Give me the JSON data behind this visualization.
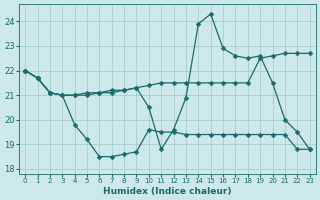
{
  "xlabel": "Humidex (Indice chaleur)",
  "bg_color": "#cce8e8",
  "line_color": "#1a6b6b",
  "grid_color": "#a8cccc",
  "xlim": [
    -0.5,
    23.5
  ],
  "ylim": [
    17.8,
    24.7
  ],
  "yticks": [
    18,
    19,
    20,
    21,
    22,
    23,
    24
  ],
  "xticks": [
    0,
    1,
    2,
    3,
    4,
    5,
    6,
    7,
    8,
    9,
    10,
    11,
    12,
    13,
    14,
    15,
    16,
    17,
    18,
    19,
    20,
    21,
    22,
    23
  ],
  "lines": [
    {
      "x": [
        0,
        1,
        2,
        3,
        4,
        5,
        6,
        7,
        8,
        9,
        10,
        11,
        12,
        13,
        14,
        15,
        16,
        17,
        18,
        19,
        20,
        21,
        22,
        23
      ],
      "y": [
        22.0,
        21.7,
        21.1,
        21.0,
        21.0,
        21.1,
        21.1,
        21.2,
        21.2,
        21.3,
        20.5,
        18.8,
        19.6,
        20.9,
        23.9,
        24.3,
        22.9,
        22.6,
        22.5,
        22.6,
        21.5,
        20.0,
        19.5,
        18.8
      ]
    },
    {
      "x": [
        0,
        1,
        2,
        3,
        4,
        5,
        6,
        7,
        8,
        9,
        10,
        11,
        12,
        13,
        14,
        15,
        16,
        17,
        18,
        19,
        20,
        21,
        22,
        23
      ],
      "y": [
        22.0,
        21.7,
        21.1,
        21.0,
        21.0,
        21.0,
        21.1,
        21.1,
        21.2,
        21.3,
        21.4,
        21.5,
        21.5,
        21.5,
        21.5,
        21.5,
        21.5,
        21.5,
        21.5,
        22.5,
        22.6,
        22.7,
        22.7,
        22.7
      ]
    },
    {
      "x": [
        0,
        1,
        2,
        3,
        4,
        5,
        6,
        7,
        8,
        9,
        10,
        11,
        12,
        13,
        14,
        15,
        16,
        17,
        18,
        19,
        20,
        21,
        22,
        23
      ],
      "y": [
        22.0,
        21.7,
        21.1,
        21.0,
        19.8,
        19.2,
        18.5,
        18.5,
        18.6,
        18.7,
        19.6,
        19.5,
        19.5,
        19.4,
        19.4,
        19.4,
        19.4,
        19.4,
        19.4,
        19.4,
        19.4,
        19.4,
        18.8,
        18.8
      ]
    }
  ],
  "marker_size": 2.5,
  "linewidth": 0.9,
  "xlabel_fontsize": 6.5,
  "tick_fontsize": 6.0
}
